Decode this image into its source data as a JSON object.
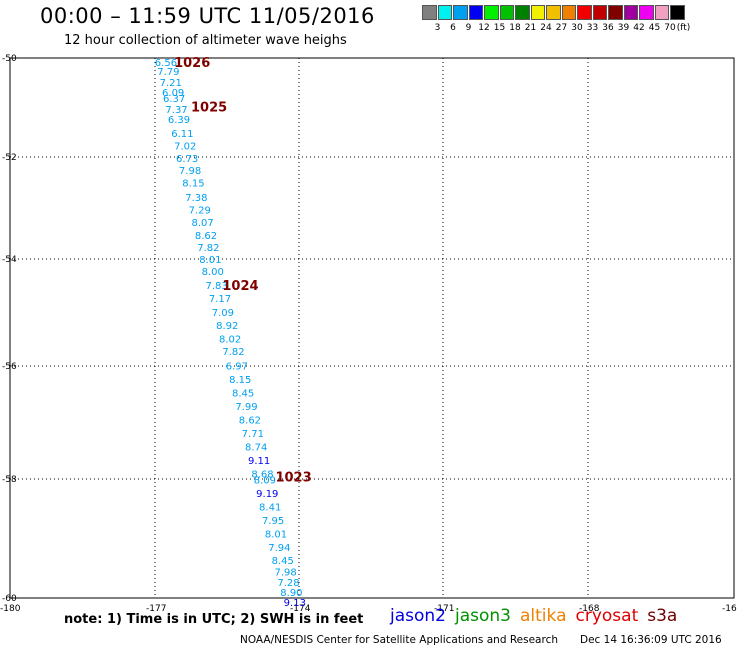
{
  "title": "00:00 – 11:59 UTC 11/05/2016",
  "subtitle": "12 hour collection of altimeter wave heighs",
  "legend": {
    "colors": [
      "#808080",
      "#00f0f0",
      "#00a0f0",
      "#0000f0",
      "#00f000",
      "#00c000",
      "#008000",
      "#f0f000",
      "#f0c000",
      "#f08000",
      "#f00000",
      "#c00000",
      "#800000",
      "#a000a0",
      "#f000f0",
      "#f0a0c0",
      "#000000"
    ],
    "labels": [
      "3",
      "6",
      "9",
      "12",
      "15",
      "18",
      "21",
      "24",
      "27",
      "30",
      "33",
      "36",
      "39",
      "42",
      "45",
      "70",
      "(ft)"
    ]
  },
  "chart_data": {
    "type": "scatter",
    "lon_range": [
      -180,
      -165
    ],
    "lat_range": [
      -60,
      -50
    ],
    "x_ticks": [
      "-180",
      "-177",
      "-174",
      "-171",
      "-168",
      "-16"
    ],
    "y_ticks": [
      "-50",
      "-52",
      "-54",
      "-56",
      "-58",
      "-60"
    ],
    "grid": true,
    "series": [
      {
        "name": "jason2",
        "unit": "ft",
        "points": [
          {
            "lon": -177.0,
            "lat": -50.07,
            "value": "6.56",
            "color": "#00a0f0"
          },
          {
            "lon": -176.95,
            "lat": -50.24,
            "value": "7.79",
            "color": "#00a0f0"
          },
          {
            "lon": -176.9,
            "lat": -50.44,
            "value": "7.21",
            "color": "#00a0f0"
          },
          {
            "lon": -176.85,
            "lat": -50.63,
            "value": "6.09",
            "color": "#00a0f0"
          },
          {
            "lon": -176.83,
            "lat": -50.74,
            "value": "6.37",
            "color": "#00a0f0"
          },
          {
            "lon": -176.78,
            "lat": -50.94,
            "value": "7.37",
            "color": "#00a0f0"
          },
          {
            "lon": -176.73,
            "lat": -51.13,
            "value": "6.39",
            "color": "#00a0f0"
          },
          {
            "lon": -176.66,
            "lat": -51.39,
            "value": "6.11",
            "color": "#00a0f0"
          },
          {
            "lon": -176.6,
            "lat": -51.62,
            "value": "7.02",
            "color": "#00a0f0"
          },
          {
            "lon": -176.56,
            "lat": -51.85,
            "value": "6.73",
            "color": "#00a0f0"
          },
          {
            "lon": -176.5,
            "lat": -52.07,
            "value": "7.98",
            "color": "#00a0f0"
          },
          {
            "lon": -176.43,
            "lat": -52.31,
            "value": "8.15",
            "color": "#00a0f0"
          },
          {
            "lon": -176.37,
            "lat": -52.57,
            "value": "7.38",
            "color": "#00a0f0"
          },
          {
            "lon": -176.3,
            "lat": -52.81,
            "value": "7.29",
            "color": "#00a0f0"
          },
          {
            "lon": -176.24,
            "lat": -53.04,
            "value": "8.07",
            "color": "#00a0f0"
          },
          {
            "lon": -176.17,
            "lat": -53.28,
            "value": "8.62",
            "color": "#00a0f0"
          },
          {
            "lon": -176.12,
            "lat": -53.5,
            "value": "7.82",
            "color": "#00a0f0"
          },
          {
            "lon": -176.08,
            "lat": -53.72,
            "value": "8.01",
            "color": "#00a0f0"
          },
          {
            "lon": -176.03,
            "lat": -53.94,
            "value": "8.00",
            "color": "#00a0f0"
          },
          {
            "lon": -175.95,
            "lat": -54.2,
            "value": "7.83",
            "color": "#00a0f0"
          },
          {
            "lon": -175.88,
            "lat": -54.44,
            "value": "7.17",
            "color": "#00a0f0"
          },
          {
            "lon": -175.82,
            "lat": -54.7,
            "value": "7.09",
            "color": "#00a0f0"
          },
          {
            "lon": -175.73,
            "lat": -54.94,
            "value": "8.92",
            "color": "#00a0f0"
          },
          {
            "lon": -175.67,
            "lat": -55.19,
            "value": "8.02",
            "color": "#00a0f0"
          },
          {
            "lon": -175.6,
            "lat": -55.43,
            "value": "7.82",
            "color": "#00a0f0"
          },
          {
            "lon": -175.53,
            "lat": -55.69,
            "value": "6.97",
            "color": "#00a0f0"
          },
          {
            "lon": -175.46,
            "lat": -55.94,
            "value": "8.15",
            "color": "#00a0f0"
          },
          {
            "lon": -175.4,
            "lat": -56.19,
            "value": "8.45",
            "color": "#00a0f0"
          },
          {
            "lon": -175.33,
            "lat": -56.44,
            "value": "7.99",
            "color": "#00a0f0"
          },
          {
            "lon": -175.26,
            "lat": -56.69,
            "value": "8.62",
            "color": "#00a0f0"
          },
          {
            "lon": -175.2,
            "lat": -56.94,
            "value": "7.71",
            "color": "#00a0f0"
          },
          {
            "lon": -175.13,
            "lat": -57.19,
            "value": "8.74",
            "color": "#00a0f0"
          },
          {
            "lon": -175.07,
            "lat": -57.44,
            "value": "9.11",
            "color": "#0000f0"
          },
          {
            "lon": -175.0,
            "lat": -57.69,
            "value": "8.68",
            "color": "#00a0f0"
          },
          {
            "lon": -174.95,
            "lat": -57.81,
            "value": "8.09",
            "color": "#00a0f0"
          },
          {
            "lon": -174.9,
            "lat": -58.06,
            "value": "9.19",
            "color": "#0000f0"
          },
          {
            "lon": -174.84,
            "lat": -58.31,
            "value": "8.41",
            "color": "#00a0f0"
          },
          {
            "lon": -174.78,
            "lat": -58.56,
            "value": "7.95",
            "color": "#00a0f0"
          },
          {
            "lon": -174.72,
            "lat": -58.81,
            "value": "8.01",
            "color": "#00a0f0"
          },
          {
            "lon": -174.65,
            "lat": -59.06,
            "value": "7.94",
            "color": "#00a0f0"
          },
          {
            "lon": -174.58,
            "lat": -59.3,
            "value": "8.45",
            "color": "#00a0f0"
          },
          {
            "lon": -174.52,
            "lat": -59.51,
            "value": "7.98",
            "color": "#00a0f0"
          },
          {
            "lon": -174.46,
            "lat": -59.7,
            "value": "7.28",
            "color": "#00a0f0"
          },
          {
            "lon": -174.4,
            "lat": -59.89,
            "value": "8.90",
            "color": "#00a0f0"
          },
          {
            "lon": -174.33,
            "lat": -60.07,
            "value": "9.13",
            "color": "#0000f0"
          }
        ]
      }
    ],
    "pressure_labels": [
      {
        "lon": -176.6,
        "lat": -50.07,
        "text": "1026"
      },
      {
        "lon": -176.25,
        "lat": -50.9,
        "text": "1025"
      },
      {
        "lon": -175.6,
        "lat": -54.2,
        "text": "1024"
      },
      {
        "lon": -174.5,
        "lat": -57.75,
        "text": "1023"
      }
    ]
  },
  "note": "note: 1) Time is in UTC; 2) SWH is in feet",
  "satellites": [
    {
      "name": "jason2",
      "color": "#0000e0"
    },
    {
      "name": "jason3",
      "color": "#009000"
    },
    {
      "name": "altika",
      "color": "#f08000"
    },
    {
      "name": "cryosat",
      "color": "#e00000"
    },
    {
      "name": "s3a",
      "color": "#700000"
    }
  ],
  "credit": "NOAA/NESDIS Center for Satellite Applications and Research",
  "timestamp": "Dec 14 16:36:09 UTC 2016"
}
